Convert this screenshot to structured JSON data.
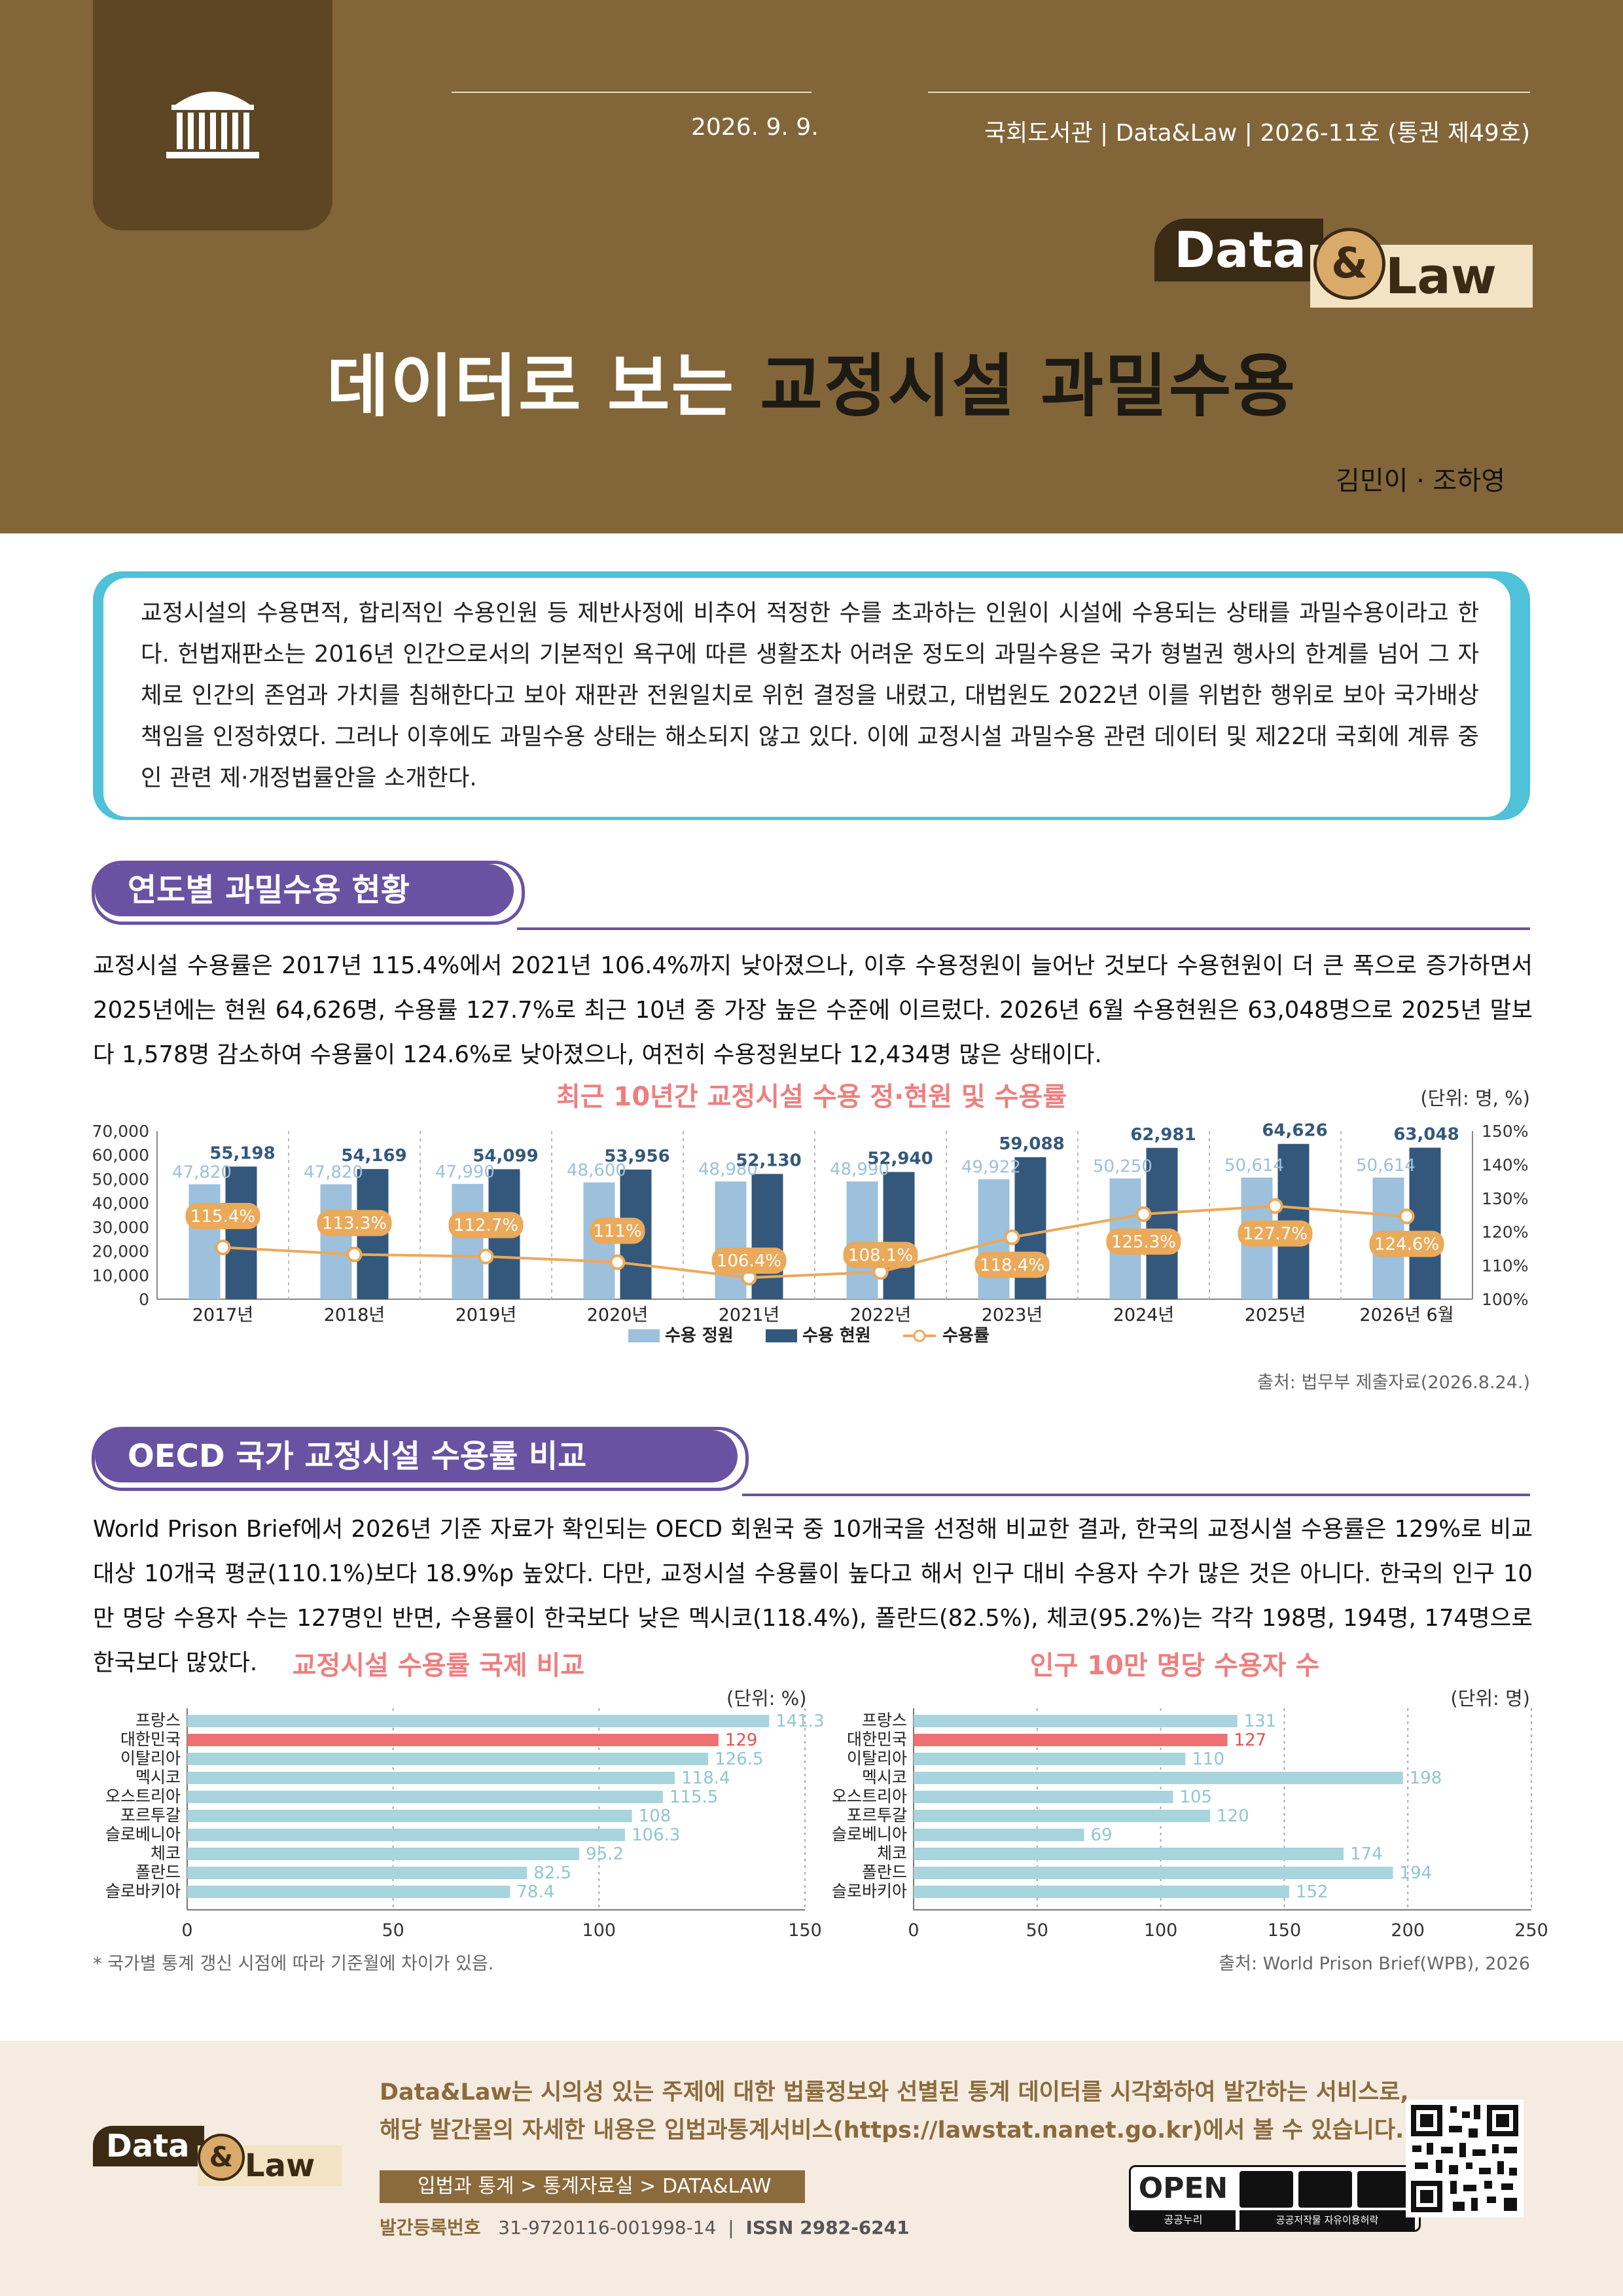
{
  "header": {
    "date": "2026. 9. 9.",
    "series_info": "국회도서관 | Data&Law | 2026-11호 (통권 제49호)",
    "brand_data": "Data",
    "brand_amp": "&",
    "brand_law": "Law",
    "title_part1": "데이터로 보는 ",
    "title_part2": "교정시설 과밀수용",
    "authors": "김민이 · 조하영"
  },
  "summary": "교정시설의 수용면적, 합리적인 수용인원 등 제반사정에 비추어 적정한 수를 초과하는 인원이 시설에 수용되는 상태를 과밀수용이라고 한다. 헌법재판소는 2016년 인간으로서의 기본적인 욕구에 따른 생활조차 어려운 정도의 과밀수용은 국가 형벌권 행사의 한계를 넘어 그 자체로 인간의 존엄과 가치를 침해한다고 보아 재판관 전원일치로 위헌 결정을 내렸고, 대법원도 2022년 이를 위법한 행위로 보아 국가배상책임을 인정하였다. 그러나 이후에도 과밀수용 상태는 해소되지 않고 있다. 이에 교정시설 과밀수용 관련 데이터 및 제22대 국회에 계류 중인 관련 제·개정법률안을 소개한다.",
  "section1": {
    "heading": "연도별 과밀수용 현황",
    "paragraph": "교정시설 수용률은 2017년 115.4%에서 2021년 106.4%까지 낮아졌으나, 이후 수용정원이 늘어난 것보다 수용현원이 더 큰 폭으로 증가하면서 2025년에는 현원 64,626명, 수용률 127.7%로 최근 10년 중 가장 높은 수준에 이르렀다. 2026년 6월 수용현원은 63,048명으로 2025년 말보다 1,578명 감소하여 수용률이 124.6%로 낮아졌으나, 여전히 수용정원보다 12,434명 많은 상태이다.",
    "source": "출처: 법무부 제출자료(2026.8.24.)"
  },
  "section2": {
    "heading": "OECD 국가 교정시설 수용률 비교",
    "paragraph": "World Prison Brief에서 2026년 기준 자료가 확인되는 OECD 회원국 중 10개국을 선정해 비교한 결과, 한국의 교정시설 수용률은 129%로 비교 대상 10개국 평균(110.1%)보다 18.9%p 높았다. 다만, 교정시설 수용률이 높다고 해서 인구 대비 수용자 수가 많은 것은 아니다. 한국의 인구 10만 명당 수용자 수는 127명인 반면, 수용률이 한국보다 낮은 멕시코(118.4%), 폴란드(82.5%), 체코(95.2%)는 각각 198명, 194명, 174명으로 한국보다 많았다.",
    "footnote": "* 국가별 통계 갱신 시점에 따라 기준월에 차이가 있음.",
    "source": "출처: World Prison Brief(WPB), 2026"
  },
  "footer": {
    "line1": "Data&Law는 시의성 있는 주제에 대한 법률정보와 선별된 통계 데이터를 시각화하여 발간하는 서비스로,",
    "line2": "해당 발간물의 자세한 내용은 입법과통계서비스(https://lawstat.nanet.go.kr)에서 볼 수 있습니다.",
    "breadcrumb": "입법과 통계  >  통계자료실  >  DATA&LAW",
    "pub_label": "발간등록번호",
    "pub_number": "31-9720116-001998-14",
    "issn": "ISSN 2982-6241",
    "brand_data": "Data",
    "brand_amp": "&",
    "brand_law": "Law",
    "open_label": "OPEN",
    "open_sub": "공공누리",
    "open_sub2": "공공저작물 자유이용허락"
  },
  "chart_data": [
    {
      "type": "bar",
      "title": "최근 10년간 교정시설 수용 정·현원 및 수용률",
      "unit": "(단위: 명, %)",
      "categories": [
        "2017년",
        "2018년",
        "2019년",
        "2020년",
        "2021년",
        "2022년",
        "2023년",
        "2024년",
        "2025년",
        "2026년 6월"
      ],
      "series": [
        {
          "name": "수용 정원",
          "values": [
            47820,
            47820,
            47990,
            48600,
            48980,
            48990,
            49922,
            50250,
            50614,
            50614
          ],
          "labels": [
            "47,820",
            "47,820",
            "47,990",
            "48,600",
            "48,980",
            "48,990",
            "49,922",
            "50,250",
            "50,614",
            "50,614"
          ],
          "color": "#9dc0dc"
        },
        {
          "name": "수용 현원",
          "values": [
            55198,
            54169,
            54099,
            53956,
            52130,
            52940,
            59088,
            62981,
            64626,
            63048
          ],
          "labels": [
            "55,198",
            "54,169",
            "54,099",
            "53,956",
            "52,130",
            "52,940",
            "59,088",
            "62,981",
            "64,626",
            "63,048"
          ],
          "color": "#34587c"
        },
        {
          "name": "수용률",
          "type": "line",
          "axis": "right",
          "values": [
            115.4,
            113.3,
            112.7,
            111,
            106.4,
            108.1,
            118.4,
            125.3,
            127.7,
            124.6
          ],
          "labels": [
            "115.4%",
            "113.3%",
            "112.7%",
            "111%",
            "106.4%",
            "108.1%",
            "118.4%",
            "125.3%",
            "127.7%",
            "124.6%"
          ],
          "color": "#eba95a"
        }
      ],
      "y_left": {
        "lim": [
          0,
          70000
        ],
        "ticks": [
          "70,000",
          "60,000",
          "50,000",
          "40,000",
          "30,000",
          "20,000",
          "10,000",
          "0"
        ]
      },
      "y_right": {
        "lim": [
          100,
          150
        ],
        "ticks": [
          "150%",
          "140%",
          "130%",
          "120%",
          "110%",
          "100%"
        ]
      },
      "legend": "bottom"
    },
    {
      "type": "bar",
      "orientation": "horizontal",
      "title": "교정시설 수용률 국제 비교",
      "unit": "(단위: %)",
      "categories": [
        "프랑스",
        "대한민국",
        "이탈리아",
        "멕시코",
        "오스트리아",
        "포르투갈",
        "슬로베니아",
        "체코",
        "폴란드",
        "슬로바키아"
      ],
      "values": [
        141.3,
        129,
        126.5,
        118.4,
        115.5,
        108,
        106.3,
        95.2,
        82.5,
        78.4
      ],
      "labels": [
        "141.3",
        "129",
        "126.5",
        "118.4",
        "115.5",
        "108",
        "106.3",
        "95.2",
        "82.5",
        "78.4"
      ],
      "highlight": "대한민국",
      "xlim": [
        0,
        150
      ],
      "xticks": [
        "0",
        "50",
        "100",
        "150"
      ]
    },
    {
      "type": "bar",
      "orientation": "horizontal",
      "title": "인구 10만 명당 수용자 수",
      "unit": "(단위: 명)",
      "categories": [
        "프랑스",
        "대한민국",
        "이탈리아",
        "멕시코",
        "오스트리아",
        "포르투갈",
        "슬로베니아",
        "체코",
        "폴란드",
        "슬로바키아"
      ],
      "values": [
        131,
        127,
        110,
        198,
        105,
        120,
        69,
        174,
        194,
        152
      ],
      "labels": [
        "131",
        "127",
        "110",
        "198",
        "105",
        "120",
        "69",
        "174",
        "194",
        "152"
      ],
      "highlight": "대한민국",
      "xlim": [
        0,
        250
      ],
      "xticks": [
        "0",
        "50",
        "100",
        "150",
        "200",
        "250"
      ]
    }
  ],
  "colors": {
    "header_brown": "#826639",
    "accent_purple": "#6a52a3",
    "title_pink": "#ee7f7f",
    "summary_cyan": "#4fc1d8",
    "bar_light": "#a8d4de",
    "bar_highlight": "#ee7070"
  }
}
